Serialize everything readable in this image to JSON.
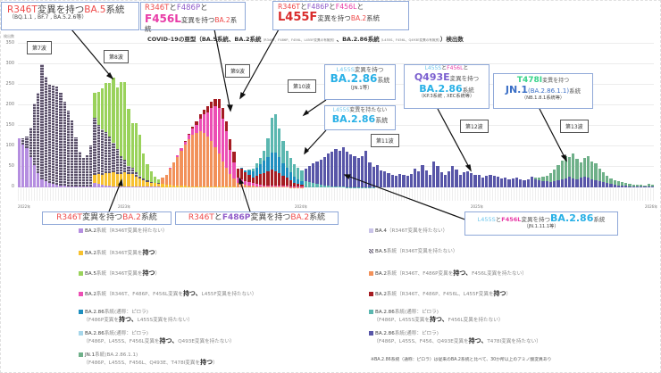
{
  "chart_data": {
    "type": "bar",
    "stacked": true,
    "title": "COVID-19の亜型（BA.5系統、BA.2系統（R346T、F486P、F456L、L455F変異の有無別）、BA.2.86系統（L455S、F456L、Q493E変異の有無別））検出数",
    "ylabel": "検出数",
    "xlabel": "",
    "ylim": [
      0,
      350
    ],
    "yticks": [
      0,
      50,
      100,
      150,
      200,
      250,
      300,
      350
    ],
    "grid": true,
    "legend_position": "bottom",
    "year_labels": [
      "2022年",
      "2023年",
      "2024年",
      "2025年",
      "2026年"
    ],
    "series_colors": {
      "BA.2 (R346T無)": "#b58ee0",
      "BA.4": "#c9c3e8",
      "BA.5 (R346T無)": "#5a5068",
      "BA.2 (R346T有)": "#f7c12f",
      "BA.5 (R346T有)": "#9ad25b",
      "BA.2 (R346T,F486P有,F456L無)": "#f2915a",
      "BA.2 (R346T,F486P,F456L有,L455F無)": "#ec4fb4",
      "BA.2 (R346T,F486P,F456L,L455F有)": "#a51c22",
      "BA.2.86 (F486P有,L455S無)": "#1e8fbf",
      "BA.2.86 (F486P,L455S有,F456L無)": "#5bb7b0",
      "BA.2.86 (F486P,L455S,F456L有,Q493E無)": "#a6d6ea",
      "BA.2.86 (F486P,L455S,F456,Q493E有,T478I無)": "#5856a8",
      "JN.1 (T478I有)": "#6fb089"
    },
    "waves": [
      "第7波",
      "第8波",
      "第9波",
      "第10波",
      "第11波",
      "第12波",
      "第13波"
    ],
    "approx_totals": {
      "wave7_peak": 300,
      "wave8_peak": 260,
      "wave9_peak": 222,
      "wave10_peak": 178,
      "wave11_peak": 95,
      "wave12_peak": 55,
      "wave13_peak": 75
    },
    "bars": [
      [
        [
          120,
          0,
          0
        ]
      ],
      [
        [
          105,
          0,
          15
        ]
      ],
      [
        [
          95,
          0,
          30
        ]
      ],
      [
        [
          75,
          0,
          70
        ]
      ],
      [
        [
          55,
          0,
          150
        ]
      ],
      [
        [
          35,
          0,
          195
        ]
      ],
      [
        [
          20,
          0,
          280
        ]
      ],
      [
        [
          15,
          0,
          255
        ]
      ],
      [
        [
          10,
          0,
          240
        ]
      ],
      [
        [
          8,
          0,
          240
        ]
      ],
      [
        [
          6,
          0,
          240
        ]
      ],
      [
        [
          5,
          0,
          220
        ]
      ],
      [
        [
          4,
          0,
          205
        ]
      ],
      [
        [
          3,
          0,
          185
        ]
      ],
      [
        [
          2,
          0,
          160
        ]
      ],
      [
        [
          2,
          0,
          120
        ]
      ],
      [
        [
          2,
          0,
          80
        ]
      ],
      [
        [
          2,
          0,
          70
        ]
      ],
      [
        [
          3,
          0,
          70
        ]
      ],
      [
        [
          3,
          5,
          100
        ]
      ],
      [
        [
          3,
          10,
          130
        ]
      ]
    ]
  },
  "header": {
    "title_main": "COVID-19の亜型（BA.5系統、BA.2系統",
    "title_small": "（R346T、F486P、F456L、L455F変異の有無別）",
    "title_mid": "、BA.2.86系統",
    "title_small2": "（L455S、F456L、Q493E変異の有無別）",
    "title_end": "）検出数",
    "y_unit": "検出数"
  },
  "yaxis": {
    "ticks": [
      "350",
      "300",
      "250",
      "200",
      "150",
      "100",
      "50",
      "0"
    ]
  },
  "years": [
    "2022年",
    "2023年",
    "2024年",
    "2025年",
    "2026年"
  ],
  "waves": {
    "w7": "第7波",
    "w8": "第8波",
    "w9": "第9波",
    "w10": "第10波",
    "w11": "第11波",
    "w12": "第12波",
    "w13": "第13波"
  },
  "callouts": {
    "c1": {
      "a": "R346T",
      "b": "変異を持つ",
      "c": "BA.5",
      "d": "系統",
      "sub": "（BQ.1.1 , BF.7 , BA.5.2.6等）"
    },
    "c2": {
      "a": "R346T",
      "b": "と",
      "c": "F486P",
      "d": "と",
      "e": "F456L",
      "f": "変異を持つ",
      "g": "BA.2",
      "h": "系統"
    },
    "c3": {
      "a": "R346T",
      "b": "と",
      "c": "F486P",
      "d": "と",
      "e": "F456L",
      "f": "と",
      "g": "L455F",
      "h": "変異を持つ",
      "i": "BA.2",
      "j": "系統"
    },
    "c4": {
      "a": "L455S",
      "b": "変異を持つ",
      "c": "BA.2.86",
      "d": "系統",
      "sub": "（JN.1等）"
    },
    "c5": {
      "a": "L455S",
      "b": "変異を持たない",
      "c": "BA.2.86",
      "d": "系統"
    },
    "c6": {
      "a": "L455S",
      "b": "と",
      "c": "F456L",
      "d": "と",
      "e": "Q493E",
      "f": "変異を持つ",
      "g": "BA.2.86",
      "h": "系統",
      "sub": "（KP.3系統 , XEC系統等）"
    },
    "c7": {
      "a": "T478I",
      "b": "変異を持つ",
      "c": "JN.1",
      "d": "(BA.2.86.1.1)",
      "e": "系統",
      "sub": "（NB.1.8.1系統等）"
    },
    "c8": {
      "a": "R346T",
      "b": "変異を持つ",
      "c": "BA.2",
      "d": "系統"
    },
    "c9": {
      "a": "R346T",
      "b": "と",
      "c": "F486P",
      "d": "変異を持つ",
      "e": "BA.2",
      "f": "系統"
    },
    "c10": {
      "a": "L455S",
      "b": "と",
      "c": "F456L",
      "d": "変異を持つ",
      "e": "BA.2.86",
      "f": "系統",
      "sub": "（JN.1.11.1等）"
    }
  },
  "legend": {
    "left": [
      {
        "color": "#b58ee0",
        "name": "BA.2",
        "kind": "系統",
        "pre": "（R346T変異を持たない）"
      },
      {
        "color": "#f7c12f",
        "name": "BA.2",
        "kind": "系統",
        "pre": "（R346T変異を",
        "bold": "持つ",
        "post": "）"
      },
      {
        "color": "#9ad25b",
        "name": "BA.5",
        "kind": "系統",
        "pre": "（R346T変異を",
        "bold": "持つ",
        "post": "）"
      },
      {
        "color": "#ec4fb4",
        "name": "BA.2",
        "kind": "系統",
        "pre": "（R346T、F486P、F456L変異を",
        "bold": "持つ、",
        "post": "L455F変異を持たない）"
      },
      {
        "color": "#1e8fbf",
        "name": "BA.2.86",
        "kind": "系統(通称：ピロラ)",
        "pre": "（F486P変異を",
        "bold": "持つ、",
        "post": "L455S変異を持たない）"
      },
      {
        "color": "#a6d6ea",
        "name": "BA.2.86",
        "kind": "系統(通称：ピロラ)",
        "pre": "（F486P、L455S、F456L変異を",
        "bold": "持つ、",
        "post": "Q493E変異を持たない）"
      },
      {
        "color": "#6fb089",
        "name": "JN.1",
        "kind": "系統(BA.2.86.1.1)",
        "pre": "（F486P、L455S、F456L、Q493E、T478I変異を",
        "bold": "持つ",
        "post": "）"
      }
    ],
    "right": [
      {
        "color": "#c9c3e8",
        "name": "BA.4",
        "kind": "",
        "pre": "（R346T変異を持たない）"
      },
      {
        "color": "#5a5068",
        "name": "BA.5",
        "kind": "系統",
        "pre": "（R346T変異を持たない）"
      },
      {
        "color": "#f2915a",
        "name": "BA.2",
        "kind": "系統",
        "pre": "（R346T、F486P変異を",
        "bold": "持つ、",
        "post": "F456L変異を持たない）"
      },
      {
        "color": "#a51c22",
        "name": "BA.2",
        "kind": "系統",
        "pre": "（R346T、F486P、F456L、L455F変異を",
        "bold": "持つ",
        "post": "）"
      },
      {
        "color": "#5bb7b0",
        "name": "BA.2.86",
        "kind": "系統(通称：ピロラ)",
        "pre": "（F486P、L455S変異を",
        "bold": "持つ、",
        "post": "F456L変異を持たない）"
      },
      {
        "color": "#5856a8",
        "name": "BA.2.86",
        "kind": "系統(通称：ピロラ)",
        "pre": "（F486P、L455S、F456、Q493E変異を",
        "bold": "持つ、",
        "post": "T478I変異を持たない）"
      }
    ],
    "note": "※BA.2.86系統（通称：ピロラ）は従来のBA.2系統と比べて、30か所以上のアミノ酸変異あり"
  }
}
